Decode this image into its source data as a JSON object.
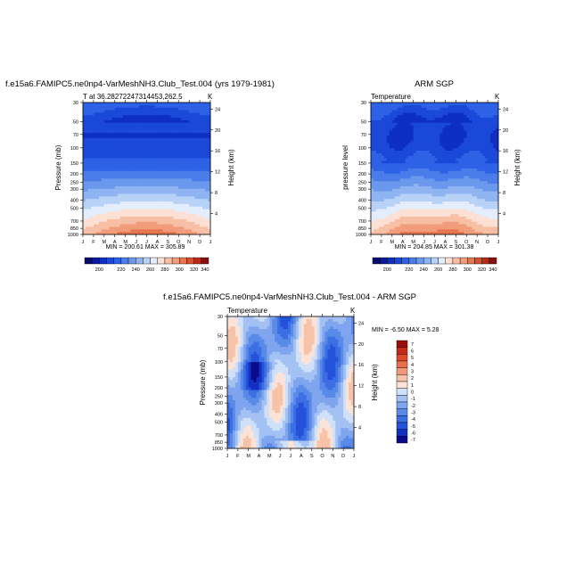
{
  "chart_data": [
    {
      "type": "heatmap",
      "title": "f.e15a6.FAMIPC5.ne0np4-VarMeshNH3.Club_Test.004 (yrs 1979-1981)",
      "left_label": "T at 36.28272247314453,262.5",
      "right_label": "K",
      "ylabel": "Pressure (mb)",
      "ylabel_right": "Height (km)",
      "x_ticks": [
        "J",
        "F",
        "M",
        "A",
        "M",
        "J",
        "J",
        "A",
        "S",
        "O",
        "N",
        "D",
        "J"
      ],
      "y_ticks": [
        "30",
        "50",
        "70",
        "100",
        "150",
        "200",
        "250",
        "300",
        "400",
        "500",
        "700",
        "850",
        "1000"
      ],
      "y_right_ticks": [
        "24",
        "20",
        "16",
        "12",
        "8",
        "4"
      ],
      "minmax_text": "MIN = 200.61 MAX = 305.89",
      "min": 200.61,
      "max": 305.89,
      "colorbar_labels": [
        "200",
        "220",
        "240",
        "260",
        "280",
        "300",
        "320",
        "340"
      ]
    },
    {
      "type": "heatmap",
      "title": "ARM SGP",
      "left_label": "Temperature",
      "right_label": "K",
      "ylabel": "pressure level",
      "ylabel_right": "Height (km)",
      "x_ticks": [
        "J",
        "F",
        "M",
        "A",
        "M",
        "J",
        "J",
        "A",
        "S",
        "O",
        "N",
        "D",
        "J"
      ],
      "y_ticks": [
        "30",
        "50",
        "70",
        "100",
        "150",
        "200",
        "250",
        "300",
        "400",
        "500",
        "700",
        "850",
        "1000"
      ],
      "y_right_ticks": [
        "24",
        "20",
        "16",
        "12",
        "8",
        "4"
      ],
      "minmax_text": "MIN = 204.85 MAX = 301.38",
      "min": 204.85,
      "max": 301.38,
      "colorbar_labels": [
        "200",
        "220",
        "240",
        "260",
        "280",
        "300",
        "320",
        "340"
      ]
    },
    {
      "type": "heatmap",
      "title": "f.e15a6.FAMIPC5.ne0np4-VarMeshNH3.Club_Test.004 - ARM SGP",
      "left_label": "Temperature",
      "right_label": "K",
      "ylabel": "Pressure (mb)",
      "ylabel_right": "Height (km)",
      "x_ticks": [
        "J",
        "F",
        "M",
        "A",
        "M",
        "J",
        "J",
        "A",
        "S",
        "O",
        "N",
        "D",
        "J"
      ],
      "y_ticks": [
        "30",
        "50",
        "70",
        "100",
        "150",
        "200",
        "250",
        "300",
        "400",
        "500",
        "700",
        "850",
        "1000"
      ],
      "y_right_ticks": [
        "24",
        "20",
        "16",
        "12",
        "8",
        "4"
      ],
      "minmax_text": "MIN =  -6.50 MAX =   5.28",
      "min": -6.5,
      "max": 5.28,
      "colorbar_labels": [
        "7",
        "6",
        "5",
        "4",
        "3",
        "2",
        "1",
        "0",
        "-1",
        "-2",
        "-3",
        "-4",
        "-5",
        "-6",
        "-7"
      ]
    }
  ]
}
